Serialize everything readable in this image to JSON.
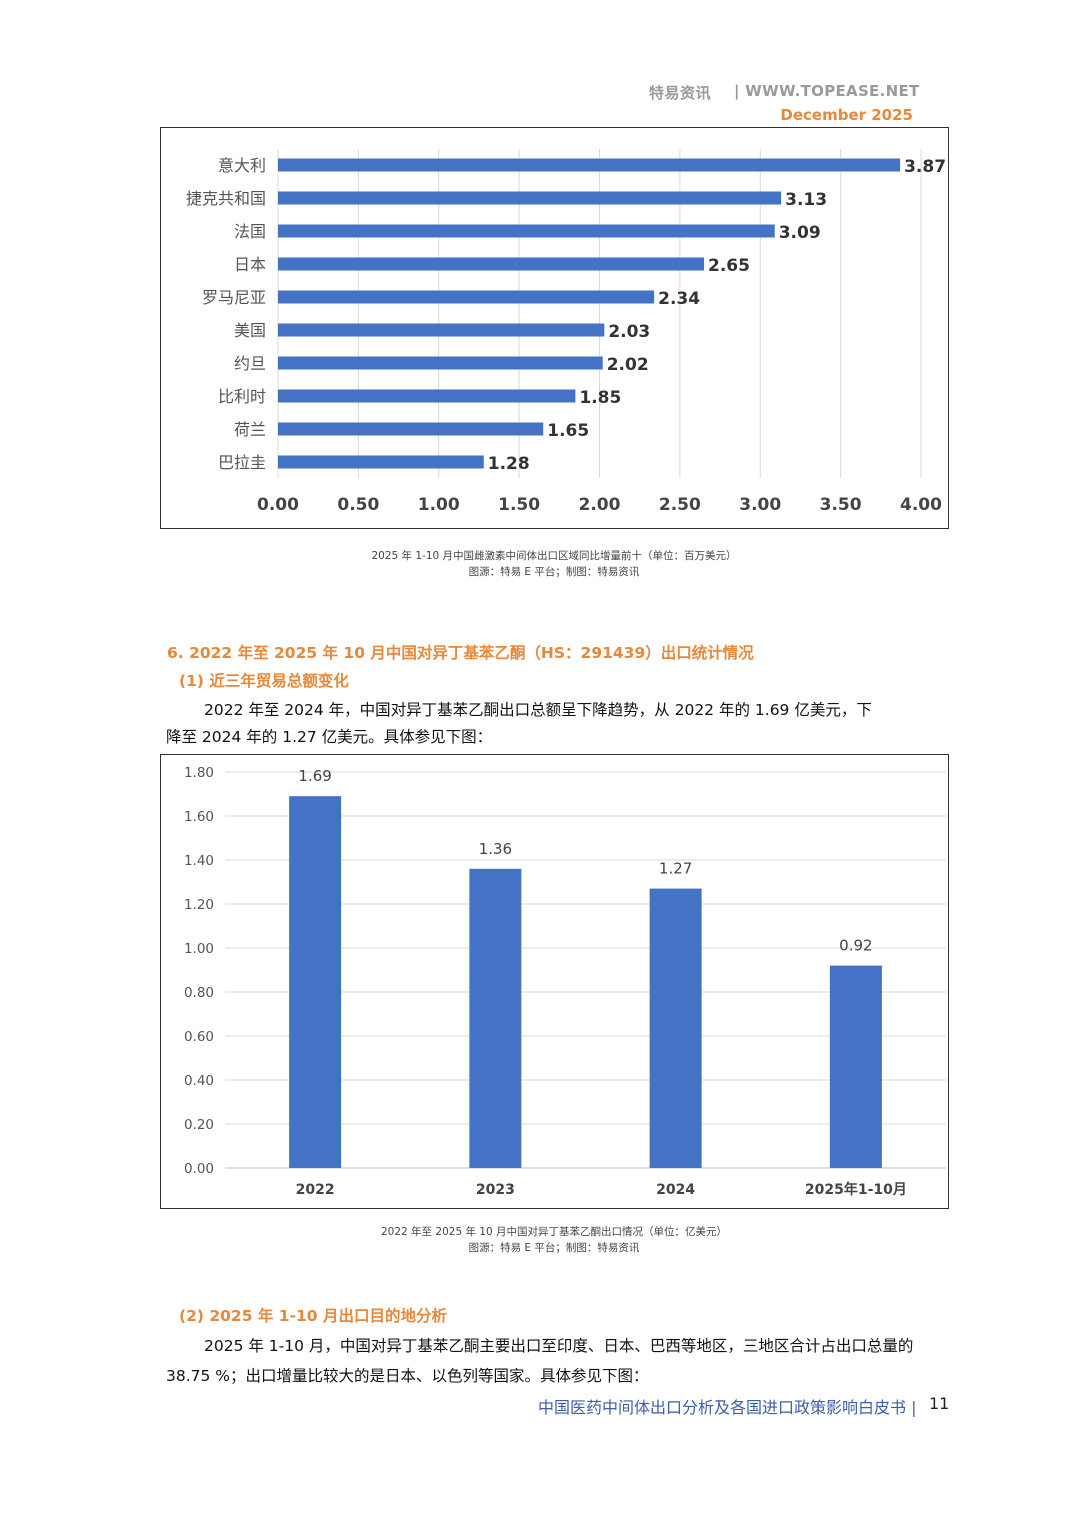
{
  "header": {
    "brand": "特易资讯",
    "site": "| WWW.TOPEASE.NET",
    "date": "December 2025"
  },
  "chart1_caption": {
    "line1": "2025 年 1-10 月中国雌激素中间体出口区域同比增量前十（单位：百万美元）",
    "line2": "图源：特易 E 平台；制图：特易资讯"
  },
  "section6": {
    "title": "6. 2022 年至 2025 年 10 月中国对异丁基苯乙酮（HS：291439）出口统计情况",
    "sub1": "(1) 近三年贸易总额变化",
    "para1_line1": "2022 年至 2024 年，中国对异丁基苯乙酮出口总额呈下降趋势，从 2022 年的 1.69 亿美元，下",
    "para1_line2": "降至 2024 年的 1.27 亿美元。具体参见下图："
  },
  "chart2_caption": {
    "line1": "2022 年至 2025 年 10 月中国对异丁基苯乙酮出口情况（单位：亿美元）",
    "line2": "图源：特易 E 平台；制图：特易资讯"
  },
  "section6b": {
    "sub2": "(2) 2025 年 1-10 月出口目的地分析",
    "para2_line1": "2025 年 1-10 月，中国对异丁基苯乙酮主要出口至印度、日本、巴西等地区，三地区合计占出口总量的",
    "para2_line2": "38.75 %；出口增量比较大的是日本、以色列等国家。具体参见下图："
  },
  "footer": {
    "text": "中国医药中间体出口分析及各国进口政策影响白皮书 |",
    "page": "11"
  },
  "chart_data": [
    {
      "type": "bar",
      "orientation": "horizontal",
      "categories": [
        "意大利",
        "捷克共和国",
        "法国",
        "日本",
        "罗马尼亚",
        "美国",
        "约旦",
        "比利时",
        "荷兰",
        "巴拉圭"
      ],
      "values": [
        3.87,
        3.13,
        3.09,
        2.65,
        2.34,
        2.03,
        2.02,
        1.85,
        1.65,
        1.28
      ],
      "value_labels": [
        "3.87",
        "3.13",
        "3.09",
        "2.65",
        "2.34",
        "2.03",
        "2.02",
        "1.85",
        "1.65",
        "1.28"
      ],
      "xlim": [
        0,
        4
      ],
      "ticks": [
        "0.00",
        "0.50",
        "1.00",
        "1.50",
        "2.00",
        "2.50",
        "3.00",
        "3.50",
        "4.00"
      ],
      "grid": true,
      "color": "#4472c4"
    },
    {
      "type": "bar",
      "orientation": "vertical",
      "categories": [
        "2022",
        "2023",
        "2024",
        "2025年1-10月"
      ],
      "values": [
        1.69,
        1.36,
        1.27,
        0.92
      ],
      "value_labels": [
        "1.69",
        "1.36",
        "1.27",
        "0.92"
      ],
      "ylim": [
        0,
        1.8
      ],
      "ticks": [
        "0.00",
        "0.20",
        "0.40",
        "0.60",
        "0.80",
        "1.00",
        "1.20",
        "1.40",
        "1.60",
        "1.80"
      ],
      "grid": true,
      "color": "#4472c4"
    }
  ]
}
